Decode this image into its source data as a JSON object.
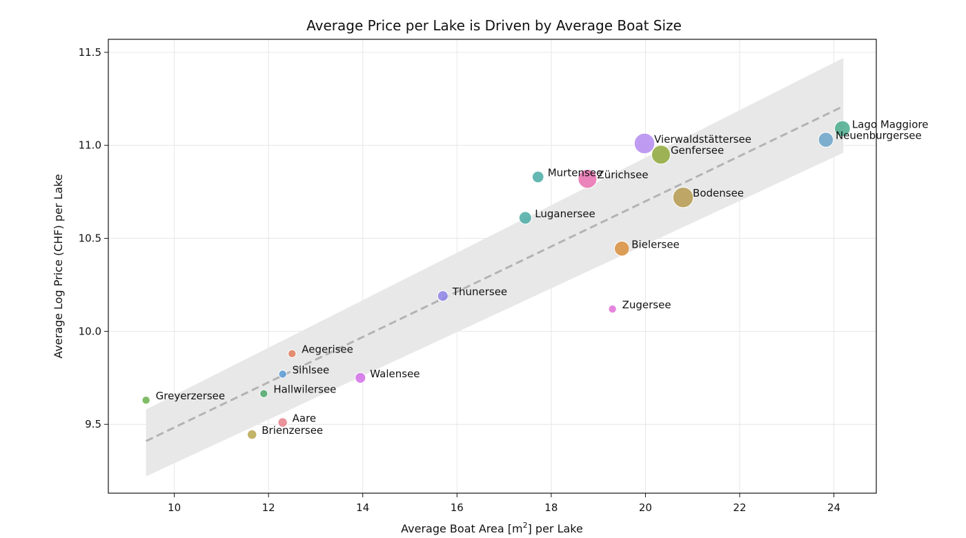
{
  "chart_data": {
    "type": "scatter",
    "title": "Average Price per Lake is Driven by Average Boat Size",
    "xlabel_prefix": "Average Boat Area [m",
    "xlabel_sup": "2",
    "xlabel_suffix": "] per Lake",
    "ylabel": "Average Log Price (CHF) per Lake",
    "xlim": [
      8.6,
      24.9
    ],
    "ylim": [
      9.13,
      11.57
    ],
    "xticks": [
      10,
      12,
      14,
      16,
      18,
      20,
      22,
      24
    ],
    "yticks": [
      9.5,
      10.0,
      10.5,
      11.0,
      11.5
    ],
    "grid": true,
    "regression": {
      "x": [
        9.4,
        24.2
      ],
      "y": [
        9.41,
        11.21
      ],
      "ci_lower": [
        9.22,
        10.96
      ],
      "ci_upper": [
        9.58,
        11.47
      ],
      "color": "#b3b3b3",
      "band_color": "#e8e8e8"
    },
    "points": [
      {
        "name": "Greyerzersee",
        "x": 9.4,
        "y": 9.63,
        "size": 2.0,
        "color": "#6ab04c"
      },
      {
        "name": "Brienzersee",
        "x": 11.65,
        "y": 9.445,
        "size": 3.0,
        "color": "#b8a64c"
      },
      {
        "name": "Hallwilersee",
        "x": 11.9,
        "y": 9.665,
        "size": 2.0,
        "color": "#4ea86b"
      },
      {
        "name": "Aare",
        "x": 12.3,
        "y": 9.51,
        "size": 3.0,
        "color": "#e8808a"
      },
      {
        "name": "Sihlsee",
        "x": 12.3,
        "y": 9.77,
        "size": 2.0,
        "color": "#5b9bd5"
      },
      {
        "name": "Aegerisee",
        "x": 12.5,
        "y": 9.88,
        "size": 2.0,
        "color": "#e07b5a"
      },
      {
        "name": "Walensee",
        "x": 13.95,
        "y": 9.75,
        "size": 4.0,
        "color": "#d16ee8"
      },
      {
        "name": "Thunersee",
        "x": 15.7,
        "y": 10.19,
        "size": 4.0,
        "color": "#8c84e8"
      },
      {
        "name": "Luganersee",
        "x": 17.45,
        "y": 10.61,
        "size": 6.0,
        "color": "#4aaaa5"
      },
      {
        "name": "Murtensee",
        "x": 17.72,
        "y": 10.83,
        "size": 5.0,
        "color": "#4aaaa5"
      },
      {
        "name": "Zürichsee",
        "x": 18.77,
        "y": 10.82,
        "size": 15.0,
        "color": "#e86fae"
      },
      {
        "name": "Zugersee",
        "x": 19.3,
        "y": 10.12,
        "size": 2.0,
        "color": "#e070d8"
      },
      {
        "name": "Bielersee",
        "x": 19.5,
        "y": 10.445,
        "size": 9.0,
        "color": "#d98f3d"
      },
      {
        "name": "Vierwaldstättersee",
        "x": 19.98,
        "y": 11.01,
        "size": 18.0,
        "color": "#b48bf0"
      },
      {
        "name": "Genfersee",
        "x": 20.33,
        "y": 10.95,
        "size": 15.0,
        "color": "#8fa83a"
      },
      {
        "name": "Bodensee",
        "x": 20.8,
        "y": 10.72,
        "size": 18.0,
        "color": "#b59a4f"
      },
      {
        "name": "Neuenburgersee",
        "x": 23.83,
        "y": 11.03,
        "size": 9.0,
        "color": "#6aa3c8"
      },
      {
        "name": "Lago Maggiore",
        "x": 24.18,
        "y": 11.09,
        "size": 10.0,
        "color": "#4aaa8c"
      }
    ]
  }
}
